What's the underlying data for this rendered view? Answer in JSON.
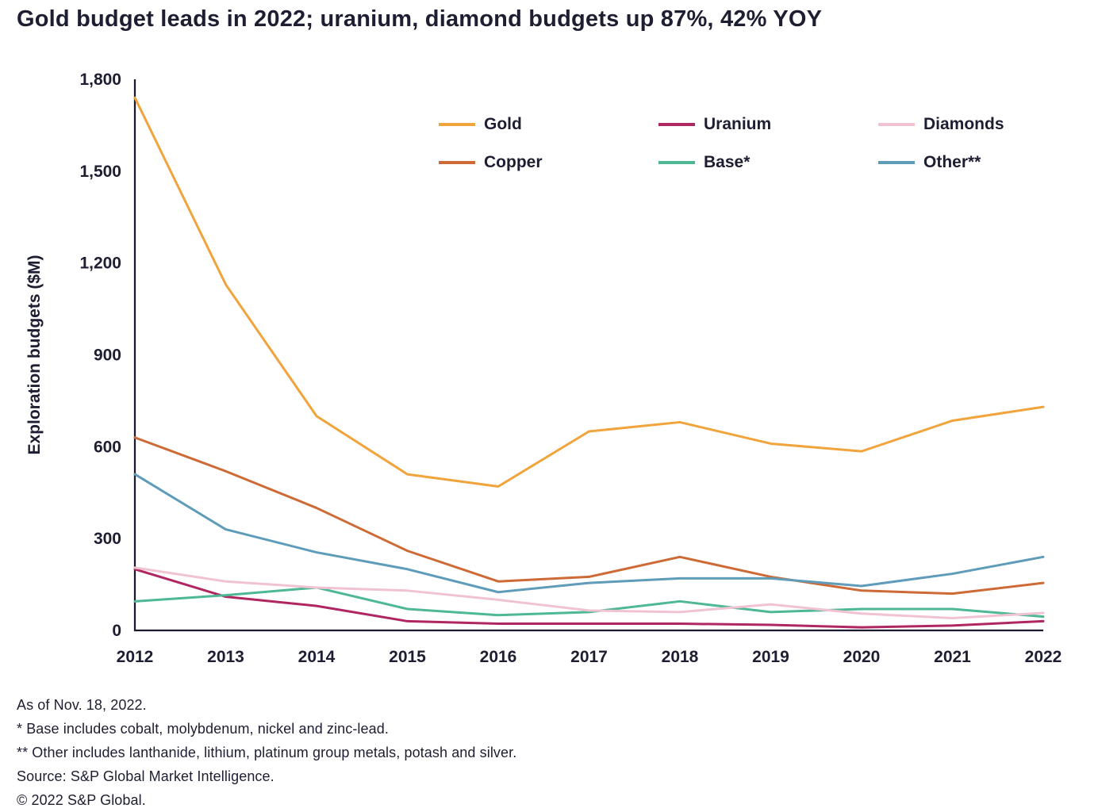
{
  "title": "Gold budget leads in 2022; uranium, diamond budgets up 87%, 42% YOY",
  "footnotes": [
    "As of Nov. 18, 2022.",
    "* Base includes cobalt, molybdenum, nickel and zinc-lead.",
    "** Other includes lanthanide, lithium, platinum group metals, potash and silver.",
    "Source: S&P Global Market Intelligence.",
    "© 2022 S&P Global."
  ],
  "chart_data": {
    "type": "line",
    "title": "Gold budget leads in 2022; uranium, diamond budgets up 87%, 42% YOY",
    "xlabel": "",
    "ylabel": "Exploration budgets ($M)",
    "ylim": [
      0,
      1800
    ],
    "yticks": [
      0,
      300,
      600,
      900,
      1200,
      1500,
      1800
    ],
    "ytick_labels": [
      "0",
      "300",
      "600",
      "900",
      "1,200",
      "1,500",
      "1,800"
    ],
    "grid": false,
    "legend_position": "top-center",
    "legend_rows": [
      [
        "Gold",
        "Uranium",
        "Diamonds"
      ],
      [
        "Copper",
        "Base*",
        "Other**"
      ]
    ],
    "x": [
      2012,
      2013,
      2014,
      2015,
      2016,
      2017,
      2018,
      2019,
      2020,
      2021,
      2022
    ],
    "series": [
      {
        "name": "gold",
        "label": "Gold",
        "color": "#F0A43B",
        "values": [
          1740,
          1130,
          700,
          510,
          470,
          650,
          680,
          610,
          585,
          685,
          730
        ]
      },
      {
        "name": "copper",
        "label": "Copper",
        "color": "#CD6A35",
        "values": [
          630,
          520,
          400,
          260,
          160,
          175,
          240,
          175,
          130,
          120,
          155
        ]
      },
      {
        "name": "uranium",
        "label": "Uranium",
        "color": "#B02663",
        "values": [
          200,
          110,
          80,
          30,
          22,
          22,
          22,
          18,
          10,
          16,
          30
        ]
      },
      {
        "name": "base",
        "label": "Base*",
        "color": "#4DB893",
        "values": [
          95,
          115,
          140,
          70,
          50,
          60,
          95,
          60,
          70,
          70,
          45
        ]
      },
      {
        "name": "diamonds",
        "label": "Diamonds",
        "color": "#F1C3D1",
        "values": [
          205,
          160,
          140,
          130,
          100,
          65,
          60,
          85,
          55,
          40,
          57
        ]
      },
      {
        "name": "other",
        "label": "Other**",
        "color": "#5F9CBA",
        "values": [
          510,
          330,
          255,
          200,
          125,
          155,
          170,
          170,
          145,
          185,
          240
        ]
      }
    ]
  }
}
